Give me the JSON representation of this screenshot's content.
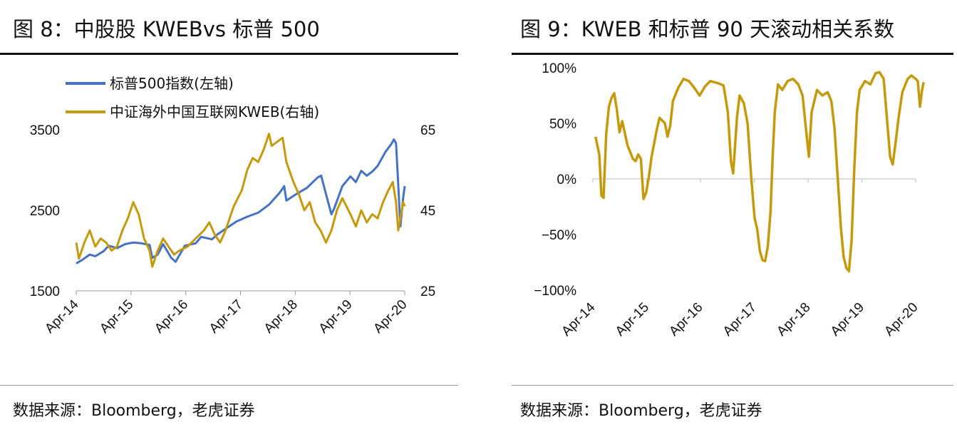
{
  "left_panel": {
    "title": "图 8：中股股 KWEBvs  标普 500",
    "source": "数据来源：Bloomberg，老虎证券"
  },
  "right_panel": {
    "title": "图 9：KWEB 和标普 90 天滚动相关系数",
    "source": "数据来源：Bloomberg，老虎证券"
  },
  "colors": {
    "spx": "#4472C4",
    "kweb": "#C49A0C"
  },
  "chart_data": [
    {
      "type": "line",
      "title": "图 8：中股股 KWEBvs  标普 500",
      "x_tick_labels": [
        "Apr-14",
        "Apr-15",
        "Apr-16",
        "Apr-17",
        "Apr-18",
        "Apr-19",
        "Apr-20"
      ],
      "y_left": {
        "ticks": [
          1500,
          2500,
          3500
        ],
        "tick_labels": [
          "1500",
          "2500",
          "3500"
        ],
        "ylim": [
          1500,
          3500
        ]
      },
      "y_right": {
        "ticks": [
          25,
          45,
          65
        ],
        "tick_labels": [
          "25",
          "45",
          "65"
        ],
        "ylim": [
          25,
          65
        ]
      },
      "xlim": [
        2014.25,
        2020.3
      ],
      "series": [
        {
          "name": "标普500指数(左轴)",
          "axis": "left",
          "color": "#4472C4",
          "points": [
            [
              2014.25,
              1840
            ],
            [
              2014.35,
              1880
            ],
            [
              2014.5,
              1950
            ],
            [
              2014.6,
              1930
            ],
            [
              2014.75,
              1990
            ],
            [
              2014.85,
              2060
            ],
            [
              2015.0,
              2030
            ],
            [
              2015.15,
              2080
            ],
            [
              2015.3,
              2100
            ],
            [
              2015.45,
              2090
            ],
            [
              2015.6,
              2070
            ],
            [
              2015.65,
              1910
            ],
            [
              2015.75,
              1950
            ],
            [
              2015.85,
              2080
            ],
            [
              2016.0,
              1910
            ],
            [
              2016.08,
              1860
            ],
            [
              2016.25,
              2060
            ],
            [
              2016.45,
              2090
            ],
            [
              2016.55,
              2170
            ],
            [
              2016.75,
              2140
            ],
            [
              2016.85,
              2200
            ],
            [
              2017.0,
              2270
            ],
            [
              2017.2,
              2360
            ],
            [
              2017.4,
              2420
            ],
            [
              2017.6,
              2470
            ],
            [
              2017.8,
              2570
            ],
            [
              2018.0,
              2720
            ],
            [
              2018.08,
              2800
            ],
            [
              2018.12,
              2620
            ],
            [
              2018.3,
              2700
            ],
            [
              2018.5,
              2780
            ],
            [
              2018.7,
              2910
            ],
            [
              2018.76,
              2930
            ],
            [
              2018.85,
              2700
            ],
            [
              2018.95,
              2450
            ],
            [
              2019.0,
              2520
            ],
            [
              2019.15,
              2800
            ],
            [
              2019.3,
              2920
            ],
            [
              2019.4,
              2850
            ],
            [
              2019.5,
              2990
            ],
            [
              2019.6,
              2930
            ],
            [
              2019.7,
              2980
            ],
            [
              2019.8,
              3050
            ],
            [
              2019.95,
              3230
            ],
            [
              2020.05,
              3320
            ],
            [
              2020.1,
              3380
            ],
            [
              2020.14,
              3330
            ],
            [
              2020.17,
              2950
            ],
            [
              2020.22,
              2300
            ],
            [
              2020.27,
              2650
            ],
            [
              2020.3,
              2800
            ]
          ]
        },
        {
          "name": "中证海外中国互联网KWEB(右轴)",
          "axis": "right",
          "color": "#C49A0C",
          "points": [
            [
              2014.25,
              37
            ],
            [
              2014.3,
              33
            ],
            [
              2014.4,
              37
            ],
            [
              2014.5,
              40
            ],
            [
              2014.6,
              36
            ],
            [
              2014.7,
              38
            ],
            [
              2014.8,
              37
            ],
            [
              2014.9,
              35
            ],
            [
              2015.0,
              36
            ],
            [
              2015.1,
              40
            ],
            [
              2015.2,
              43
            ],
            [
              2015.3,
              47
            ],
            [
              2015.4,
              44
            ],
            [
              2015.5,
              38
            ],
            [
              2015.6,
              35
            ],
            [
              2015.65,
              31
            ],
            [
              2015.75,
              35
            ],
            [
              2015.85,
              38
            ],
            [
              2015.95,
              36
            ],
            [
              2016.05,
              34
            ],
            [
              2016.15,
              35
            ],
            [
              2016.3,
              36
            ],
            [
              2016.45,
              38
            ],
            [
              2016.6,
              40
            ],
            [
              2016.7,
              42
            ],
            [
              2016.8,
              39
            ],
            [
              2016.9,
              37
            ],
            [
              2017.0,
              40
            ],
            [
              2017.15,
              46
            ],
            [
              2017.3,
              50
            ],
            [
              2017.4,
              55
            ],
            [
              2017.5,
              58
            ],
            [
              2017.6,
              57
            ],
            [
              2017.7,
              60
            ],
            [
              2017.8,
              64
            ],
            [
              2017.85,
              61
            ],
            [
              2017.95,
              62
            ],
            [
              2018.05,
              63
            ],
            [
              2018.12,
              57
            ],
            [
              2018.25,
              52
            ],
            [
              2018.35,
              49
            ],
            [
              2018.45,
              45
            ],
            [
              2018.55,
              47
            ],
            [
              2018.65,
              42
            ],
            [
              2018.75,
              40
            ],
            [
              2018.85,
              37
            ],
            [
              2018.95,
              40
            ],
            [
              2019.05,
              45
            ],
            [
              2019.15,
              48
            ],
            [
              2019.3,
              44
            ],
            [
              2019.4,
              41
            ],
            [
              2019.5,
              45
            ],
            [
              2019.6,
              42
            ],
            [
              2019.7,
              44
            ],
            [
              2019.8,
              43
            ],
            [
              2019.9,
              47
            ],
            [
              2020.0,
              50
            ],
            [
              2020.08,
              52
            ],
            [
              2020.14,
              47
            ],
            [
              2020.18,
              40
            ],
            [
              2020.22,
              43
            ],
            [
              2020.27,
              47
            ],
            [
              2020.3,
              46
            ]
          ]
        }
      ]
    },
    {
      "type": "line",
      "title": "图 9：KWEB 和标普 90 天滚动相关系数",
      "x_tick_labels": [
        "Apr-14",
        "Apr-15",
        "Apr-16",
        "Apr-17",
        "Apr-18",
        "Apr-19",
        "Apr-20"
      ],
      "y": {
        "ticks": [
          100,
          50,
          0,
          -50,
          -100
        ],
        "tick_labels": [
          "100%",
          "50%",
          "0%",
          "−50%",
          "−100%"
        ],
        "ylim": [
          -100,
          100
        ]
      },
      "xlim": [
        2014.25,
        2020.3
      ],
      "series": [
        {
          "name": "90天滚动相关系数",
          "color": "#C49A0C",
          "points": [
            [
              2014.3,
              38
            ],
            [
              2014.37,
              22
            ],
            [
              2014.41,
              -15
            ],
            [
              2014.45,
              -17
            ],
            [
              2014.5,
              40
            ],
            [
              2014.55,
              65
            ],
            [
              2014.6,
              73
            ],
            [
              2014.65,
              77
            ],
            [
              2014.7,
              62
            ],
            [
              2014.75,
              42
            ],
            [
              2014.8,
              52
            ],
            [
              2014.9,
              30
            ],
            [
              2015.0,
              18
            ],
            [
              2015.05,
              16
            ],
            [
              2015.1,
              22
            ],
            [
              2015.15,
              18
            ],
            [
              2015.2,
              -18
            ],
            [
              2015.25,
              -12
            ],
            [
              2015.3,
              2
            ],
            [
              2015.35,
              20
            ],
            [
              2015.45,
              45
            ],
            [
              2015.5,
              55
            ],
            [
              2015.6,
              50
            ],
            [
              2015.65,
              38
            ],
            [
              2015.7,
              48
            ],
            [
              2015.75,
              70
            ],
            [
              2015.85,
              82
            ],
            [
              2015.95,
              90
            ],
            [
              2016.05,
              88
            ],
            [
              2016.15,
              82
            ],
            [
              2016.25,
              75
            ],
            [
              2016.35,
              83
            ],
            [
              2016.45,
              88
            ],
            [
              2016.6,
              86
            ],
            [
              2016.7,
              84
            ],
            [
              2016.78,
              60
            ],
            [
              2016.84,
              15
            ],
            [
              2016.88,
              5
            ],
            [
              2016.95,
              55
            ],
            [
              2017.0,
              75
            ],
            [
              2017.08,
              68
            ],
            [
              2017.15,
              50
            ],
            [
              2017.22,
              0
            ],
            [
              2017.28,
              -35
            ],
            [
              2017.33,
              -45
            ],
            [
              2017.38,
              -65
            ],
            [
              2017.43,
              -73
            ],
            [
              2017.48,
              -74
            ],
            [
              2017.53,
              -60
            ],
            [
              2017.58,
              -30
            ],
            [
              2017.62,
              20
            ],
            [
              2017.66,
              60
            ],
            [
              2017.72,
              85
            ],
            [
              2017.8,
              80
            ],
            [
              2017.9,
              88
            ],
            [
              2018.0,
              90
            ],
            [
              2018.1,
              85
            ],
            [
              2018.18,
              75
            ],
            [
              2018.25,
              42
            ],
            [
              2018.3,
              20
            ],
            [
              2018.35,
              60
            ],
            [
              2018.45,
              80
            ],
            [
              2018.55,
              75
            ],
            [
              2018.65,
              78
            ],
            [
              2018.72,
              70
            ],
            [
              2018.78,
              45
            ],
            [
              2018.84,
              0
            ],
            [
              2018.9,
              -45
            ],
            [
              2018.95,
              -70
            ],
            [
              2019.0,
              -80
            ],
            [
              2019.05,
              -83
            ],
            [
              2019.1,
              -55
            ],
            [
              2019.15,
              10
            ],
            [
              2019.2,
              60
            ],
            [
              2019.25,
              80
            ],
            [
              2019.35,
              88
            ],
            [
              2019.45,
              85
            ],
            [
              2019.55,
              95
            ],
            [
              2019.62,
              96
            ],
            [
              2019.7,
              90
            ],
            [
              2019.76,
              55
            ],
            [
              2019.82,
              20
            ],
            [
              2019.87,
              13
            ],
            [
              2019.93,
              35
            ],
            [
              2019.98,
              55
            ],
            [
              2020.05,
              78
            ],
            [
              2020.15,
              90
            ],
            [
              2020.22,
              93
            ],
            [
              2020.3,
              90
            ],
            [
              2020.34,
              88
            ],
            [
              2020.38,
              65
            ],
            [
              2020.42,
              80
            ],
            [
              2020.45,
              87
            ]
          ]
        }
      ]
    }
  ]
}
